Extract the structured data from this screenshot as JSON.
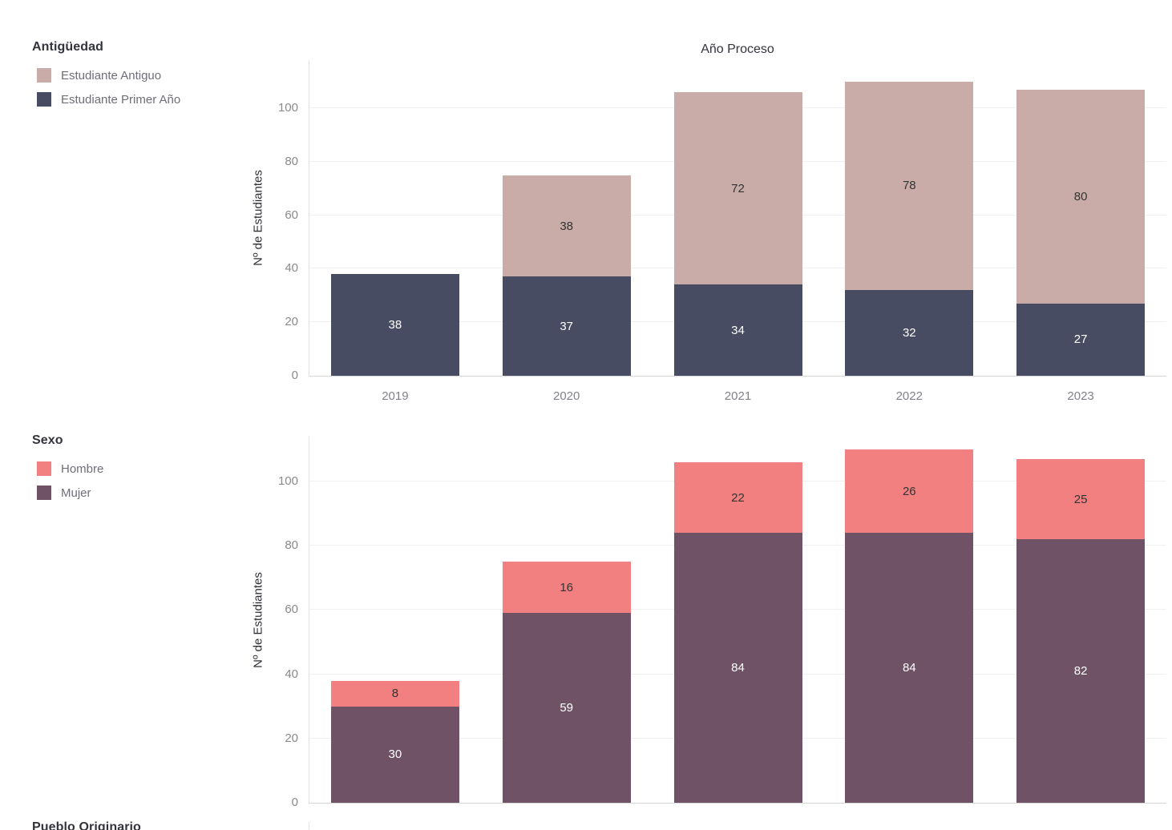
{
  "legends": {
    "antiguedad": {
      "title": "Antigüedad",
      "items": [
        {
          "label": "Estudiante Antiguo",
          "color": "#c9aca7"
        },
        {
          "label": "Estudiante Primer Año",
          "color": "#474c63"
        }
      ]
    },
    "sexo": {
      "title": "Sexo",
      "items": [
        {
          "label": "Hombre",
          "color": "#f28080"
        },
        {
          "label": "Mujer",
          "color": "#6f5266"
        }
      ]
    },
    "cutoff": {
      "title": "Pueblo Originario"
    }
  },
  "chart_data": [
    {
      "type": "bar",
      "stacked": true,
      "title": "Año Proceso",
      "xlabel": "",
      "ylabel": "Nº de Estudiantes",
      "categories": [
        "2019",
        "2020",
        "2021",
        "2022",
        "2023"
      ],
      "series": [
        {
          "name": "Estudiante Primer Año",
          "color": "#474c63",
          "label_color": "#ffffff",
          "values": [
            38,
            37,
            34,
            32,
            27
          ]
        },
        {
          "name": "Estudiante Antiguo",
          "color": "#c9aca7",
          "label_color": "#333333",
          "values": [
            0,
            38,
            72,
            78,
            80
          ]
        }
      ],
      "totals": [
        38,
        75,
        106,
        110,
        107
      ],
      "ylim": [
        0,
        118
      ],
      "yticks": [
        0,
        20,
        40,
        60,
        80,
        100
      ],
      "grid": true,
      "legend_position": "left",
      "show_x_labels": true
    },
    {
      "type": "bar",
      "stacked": true,
      "title": "",
      "xlabel": "",
      "ylabel": "Nº de Estudiantes",
      "categories": [
        "2019",
        "2020",
        "2021",
        "2022",
        "2023"
      ],
      "series": [
        {
          "name": "Mujer",
          "color": "#6f5266",
          "label_color": "#ffffff",
          "values": [
            30,
            59,
            84,
            84,
            82
          ]
        },
        {
          "name": "Hombre",
          "color": "#f28080",
          "label_color": "#333333",
          "values": [
            8,
            16,
            22,
            26,
            25
          ]
        }
      ],
      "totals": [
        38,
        75,
        106,
        110,
        107
      ],
      "ylim": [
        0,
        114
      ],
      "yticks": [
        0,
        20,
        40,
        60,
        80,
        100
      ],
      "grid": true,
      "legend_position": "left",
      "show_x_labels": false
    }
  ]
}
